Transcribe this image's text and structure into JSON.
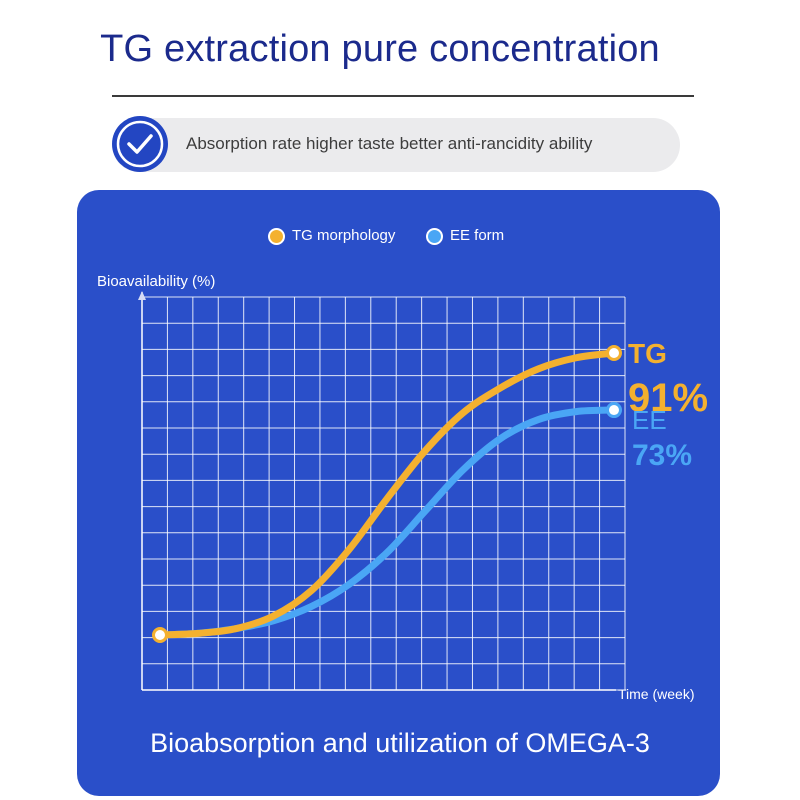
{
  "header": {
    "title": "TG extraction pure concentration",
    "tagline": "Absorption rate higher taste better anti-rancidity ability"
  },
  "chart_data": {
    "type": "line",
    "title": "",
    "ylabel": "Bioavailability (%)",
    "xlabel": "Time (week)",
    "grid": true,
    "legend": "top-center",
    "series": [
      {
        "name": "TG morphology",
        "end_label": "TG",
        "end_value_label": "91%",
        "color": "#f4b12f",
        "x": [
          0,
          1,
          2,
          3,
          4,
          5,
          6,
          7,
          8,
          9,
          10,
          11,
          12
        ],
        "values": [
          2,
          2.5,
          4,
          8,
          16,
          29,
          45,
          60,
          72,
          80,
          86,
          89.5,
          91
        ]
      },
      {
        "name": "EE form",
        "end_label": "EE",
        "end_value_label": "73%",
        "color": "#4aa6f5",
        "x": [
          0,
          1,
          2,
          3,
          4,
          5,
          6,
          7,
          8,
          9,
          10,
          11,
          12
        ],
        "values": [
          2,
          2.5,
          4,
          6.5,
          11,
          18,
          28,
          41,
          54,
          64,
          70,
          72.5,
          73
        ]
      }
    ]
  },
  "footer": {
    "caption": "Bioabsorption and utilization of OMEGA-3"
  },
  "colors": {
    "panel": "#2a4fc9",
    "title": "#1b2a8c",
    "check": "#2346c2",
    "grid": "#ffffff"
  },
  "icons": {
    "check": "checkmark-icon"
  }
}
